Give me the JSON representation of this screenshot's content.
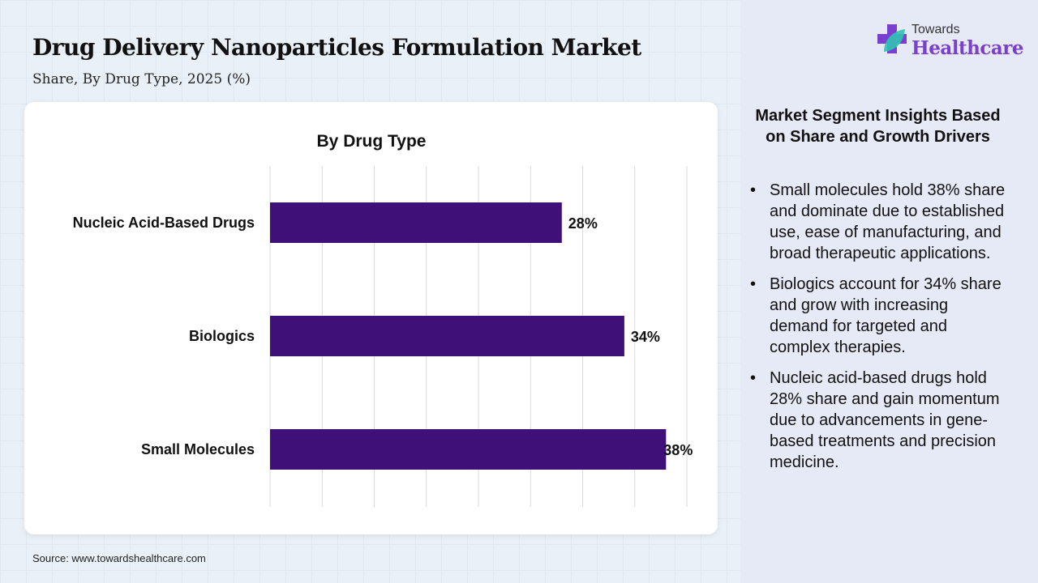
{
  "header": {
    "title": "Drug Delivery Nanoparticles Formulation Market",
    "subtitle": "Share, By Drug Type, 2025 (%)"
  },
  "logo": {
    "line1": "Towards",
    "line2": "Healthcare"
  },
  "source": "Source: www.towardshealthcare.com",
  "colors": {
    "bar": "#3f1178",
    "brand": "#7b3fd0"
  },
  "chart_data": {
    "type": "bar",
    "orientation": "horizontal",
    "title": "By Drug Type",
    "categories": [
      "Nucleic Acid-Based Drugs",
      "Biologics",
      "Small Molecules"
    ],
    "values": [
      28,
      34,
      38
    ],
    "labels": [
      "28%",
      "34%",
      "38%"
    ],
    "xlim": [
      0,
      40
    ],
    "grid": true,
    "xlabel": "",
    "ylabel": ""
  },
  "insights": {
    "title": "Market Segment Insights Based on Share and Growth Drivers",
    "bullets": [
      "Small molecules hold 38% share and dominate due to established use, ease of manufacturing, and broad therapeutic applications.",
      "Biologics account for 34% share and grow with increasing demand for targeted and complex therapies.",
      "Nucleic acid-based drugs hold 28% share and gain momentum due to advancements in gene-based treatments and precision medicine."
    ]
  }
}
